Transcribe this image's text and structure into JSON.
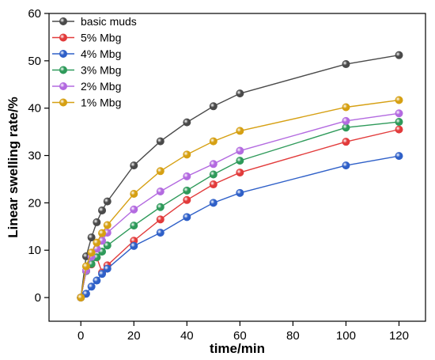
{
  "chart_data": {
    "type": "line",
    "title": "",
    "xlabel": "time/min",
    "ylabel": "Linear swelling rate/%",
    "xlim": [
      -12,
      130
    ],
    "ylim": [
      -5,
      60
    ],
    "xticks": [
      0,
      20,
      40,
      60,
      80,
      100,
      120
    ],
    "yticks": [
      0,
      10,
      20,
      30,
      40,
      50,
      60
    ],
    "x": [
      0,
      2,
      4,
      6,
      8,
      10,
      20,
      30,
      40,
      50,
      60,
      100,
      120
    ],
    "legend_position": "top-left",
    "grid": false,
    "series": [
      {
        "name": "basic muds",
        "color": "#4a4a4a",
        "values": [
          0,
          8.7,
          12.7,
          15.9,
          18.4,
          20.3,
          27.9,
          33.0,
          37.0,
          40.4,
          43.1,
          49.3,
          51.2
        ]
      },
      {
        "name": "5% Mbg",
        "color": "#e23b3b",
        "values": [
          0,
          5.6,
          7.0,
          8.5,
          5.3,
          6.8,
          12.0,
          16.5,
          20.6,
          23.9,
          26.4,
          32.9,
          35.5
        ]
      },
      {
        "name": "4% Mbg",
        "color": "#2f60c8",
        "values": [
          0,
          0.8,
          2.3,
          3.6,
          5.0,
          6.1,
          10.9,
          13.7,
          17.0,
          20.0,
          22.1,
          27.9,
          29.9
        ]
      },
      {
        "name": "3% Mbg",
        "color": "#2e9a5a",
        "values": [
          0,
          5.6,
          7.1,
          8.5,
          9.7,
          11.0,
          15.2,
          19.1,
          22.6,
          26.0,
          28.9,
          35.9,
          37.1
        ]
      },
      {
        "name": "2% Mbg",
        "color": "#b36ae0",
        "values": [
          0,
          5.7,
          8.6,
          10.3,
          12.0,
          13.7,
          18.6,
          22.4,
          25.6,
          28.2,
          31.0,
          37.3,
          38.9
        ]
      },
      {
        "name": "1% Mbg",
        "color": "#d6a013",
        "values": [
          0,
          6.6,
          9.5,
          11.6,
          13.6,
          15.3,
          21.9,
          26.7,
          30.2,
          33.0,
          35.2,
          40.2,
          41.7
        ]
      }
    ]
  }
}
